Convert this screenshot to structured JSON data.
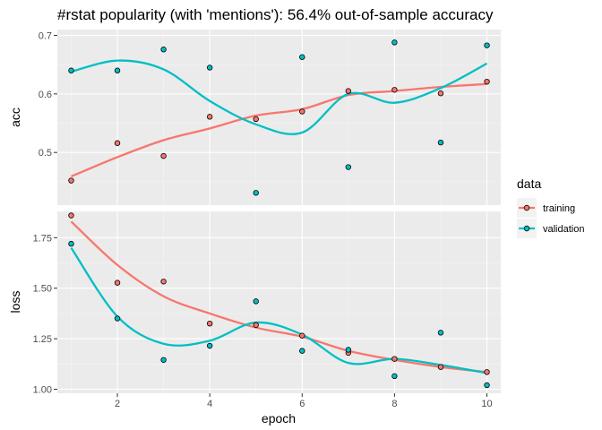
{
  "chart_data": {
    "type": "scatter",
    "title": "#rstat popularity (with 'mentions'): 56.4% out-of-sample accuracy",
    "xlabel": "epoch",
    "x": [
      1,
      2,
      3,
      4,
      5,
      6,
      7,
      8,
      9,
      10
    ],
    "xticks": [
      2,
      4,
      6,
      8,
      10
    ],
    "xlim": [
      0.7,
      10.3
    ],
    "legend": {
      "title": "data",
      "position": "right"
    },
    "colors": {
      "training": "#F8766D",
      "validation": "#00BFC4"
    },
    "grid": true,
    "panels": [
      {
        "name": "acc",
        "ylim": [
          0.41,
          0.71
        ],
        "yticks": [
          0.5,
          0.6,
          0.7
        ],
        "ytick_labels": [
          "0.5",
          "0.6",
          "0.7"
        ],
        "series": [
          {
            "name": "training",
            "values": [
              0.452,
              0.516,
              0.494,
              0.561,
              0.557,
              0.57,
              0.605,
              0.607,
              0.601,
              0.621
            ],
            "smooth": [
              0.459,
              0.492,
              0.521,
              0.541,
              0.563,
              0.574,
              0.598,
              0.605,
              0.612,
              0.617
            ]
          },
          {
            "name": "validation",
            "values": [
              0.64,
              0.64,
              0.676,
              0.645,
              0.431,
              0.663,
              0.475,
              0.688,
              0.517,
              0.683
            ],
            "smooth": [
              0.638,
              0.657,
              0.642,
              0.588,
              0.548,
              0.534,
              0.6,
              0.585,
              0.61,
              0.652
            ]
          }
        ]
      },
      {
        "name": "loss",
        "ylim": [
          0.98,
          1.88
        ],
        "yticks": [
          1.0,
          1.25,
          1.5,
          1.75
        ],
        "ytick_labels": [
          "1.00",
          "1.25",
          "1.50",
          "1.75"
        ],
        "series": [
          {
            "name": "training",
            "values": [
              1.86,
              1.527,
              1.533,
              1.325,
              1.318,
              1.265,
              1.18,
              1.15,
              1.11,
              1.085
            ],
            "smooth": [
              1.83,
              1.615,
              1.46,
              1.375,
              1.305,
              1.26,
              1.19,
              1.145,
              1.11,
              1.085
            ]
          },
          {
            "name": "validation",
            "values": [
              1.72,
              1.35,
              1.145,
              1.215,
              1.435,
              1.19,
              1.195,
              1.065,
              1.28,
              1.02
            ],
            "smooth": [
              1.7,
              1.36,
              1.225,
              1.24,
              1.33,
              1.27,
              1.13,
              1.15,
              1.12,
              1.08
            ]
          }
        ]
      }
    ]
  }
}
